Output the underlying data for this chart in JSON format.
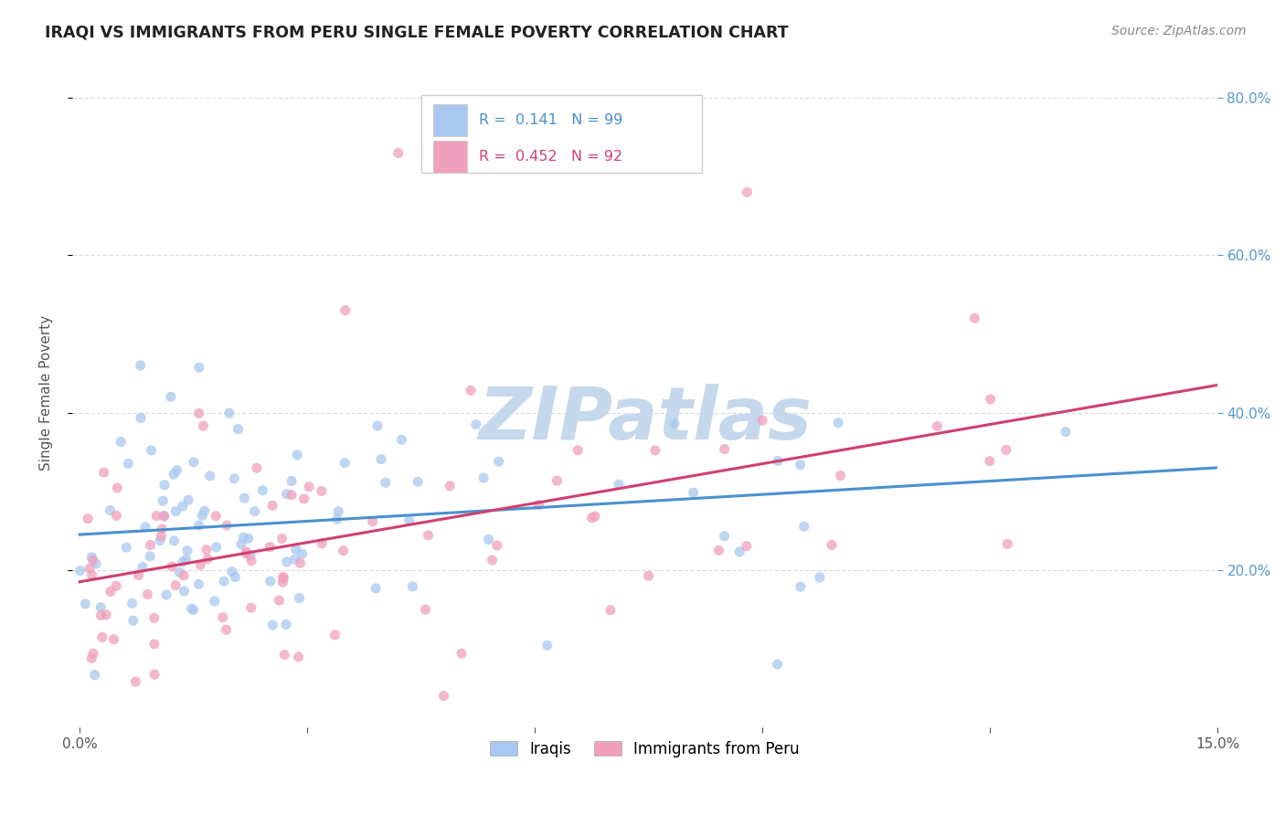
{
  "title": "IRAQI VS IMMIGRANTS FROM PERU SINGLE FEMALE POVERTY CORRELATION CHART",
  "source": "Source: ZipAtlas.com",
  "ylabel": "Single Female Poverty",
  "xmin": 0.0,
  "xmax": 0.15,
  "ymin": 0.0,
  "ymax": 0.85,
  "yticks": [
    0.2,
    0.4,
    0.6,
    0.8
  ],
  "xticks": [
    0.0,
    0.03,
    0.06,
    0.09,
    0.12,
    0.15
  ],
  "iraqis_R": 0.141,
  "iraqis_N": 99,
  "peru_R": 0.452,
  "peru_N": 92,
  "iraqis_color": "#a8c8f0",
  "peru_color": "#f0a0bc",
  "iraqis_line_color": "#4a90d0",
  "peru_line_color": "#d04070",
  "iraq_trend_x0": 0.0,
  "iraq_trend_y0": 0.245,
  "iraq_trend_x1": 0.15,
  "iraq_trend_y1": 0.33,
  "peru_trend_x0": 0.0,
  "peru_trend_y0": 0.185,
  "peru_trend_x1": 0.15,
  "peru_trend_y1": 0.435,
  "watermark_text": "ZIPatlas",
  "watermark_color": "#c5d8ec",
  "background_color": "#ffffff",
  "grid_color": "#dddddd",
  "title_color": "#222222",
  "source_color": "#888888",
  "ylabel_color": "#555555",
  "tick_color": "#555555",
  "right_tick_color": "#5599cc",
  "legend_box_color": "#cccccc",
  "scatter_size": 65,
  "scatter_alpha": 0.75
}
